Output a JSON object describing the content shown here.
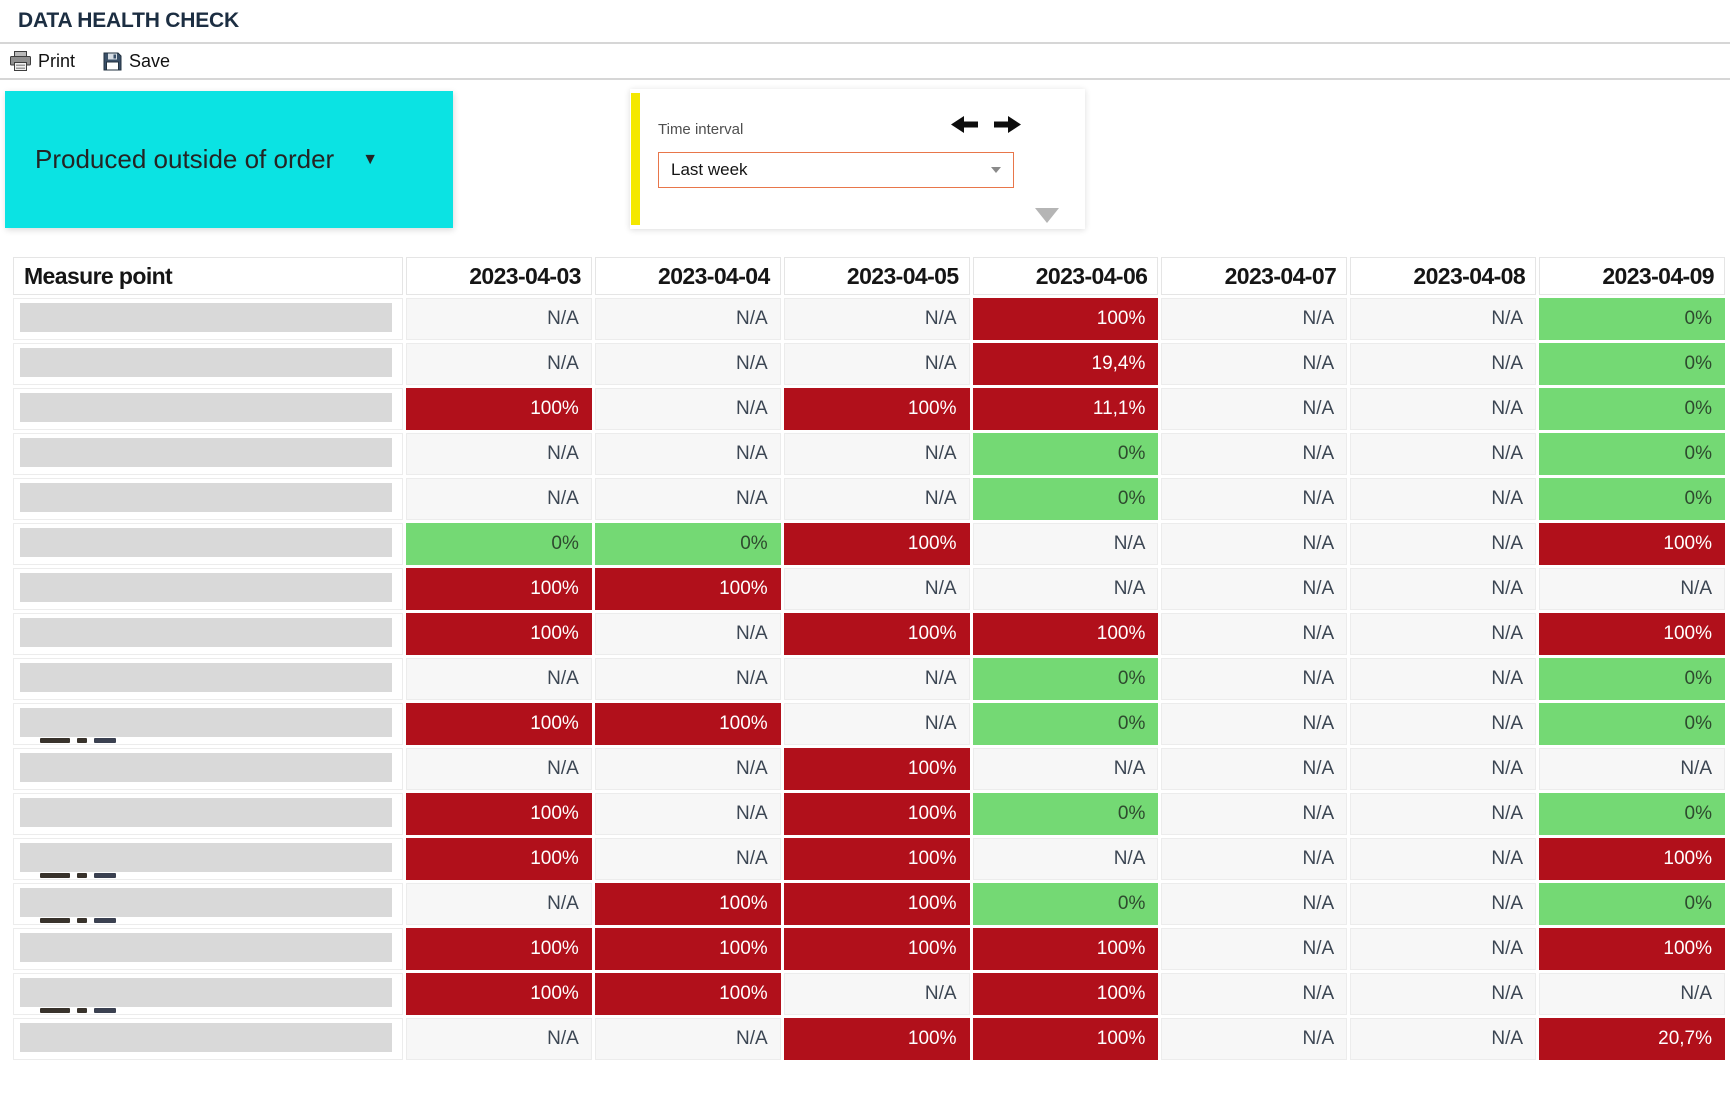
{
  "page": {
    "title": "DATA HEALTH CHECK"
  },
  "toolbar": {
    "print_label": "Print",
    "save_label": "Save",
    "print_icon": "printer-icon",
    "save_icon": "floppy-disk-icon"
  },
  "filters": {
    "measure_dropdown": {
      "label": "Produced outside of order",
      "caret": "▼"
    },
    "time_panel": {
      "label": "Time interval",
      "selected": "Last week",
      "prev_icon": "arrow-left-icon",
      "next_icon": "arrow-right-icon"
    }
  },
  "colors": {
    "red_cell": "#b1101b",
    "green_cell": "#74d974",
    "cyan_dropdown": "#0be3e3",
    "yellow_accent": "#f4e800",
    "select_border": "#e8764a",
    "redaction_gray": "#d9d9d9"
  },
  "table": {
    "measure_point_header": "Measure point",
    "date_headers": [
      "2023-04-03",
      "2023-04-04",
      "2023-04-05",
      "2023-04-06",
      "2023-04-07",
      "2023-04-08",
      "2023-04-09"
    ],
    "rows": [
      {
        "redacted": true,
        "fragment": false,
        "cells": [
          {
            "text": "N/A",
            "state": "na"
          },
          {
            "text": "N/A",
            "state": "na"
          },
          {
            "text": "N/A",
            "state": "na"
          },
          {
            "text": "100%",
            "state": "red"
          },
          {
            "text": "N/A",
            "state": "na"
          },
          {
            "text": "N/A",
            "state": "na"
          },
          {
            "text": "0%",
            "state": "green"
          }
        ]
      },
      {
        "redacted": true,
        "fragment": false,
        "cells": [
          {
            "text": "N/A",
            "state": "na"
          },
          {
            "text": "N/A",
            "state": "na"
          },
          {
            "text": "N/A",
            "state": "na"
          },
          {
            "text": "19,4%",
            "state": "red"
          },
          {
            "text": "N/A",
            "state": "na"
          },
          {
            "text": "N/A",
            "state": "na"
          },
          {
            "text": "0%",
            "state": "green"
          }
        ]
      },
      {
        "redacted": true,
        "fragment": false,
        "cells": [
          {
            "text": "100%",
            "state": "red"
          },
          {
            "text": "N/A",
            "state": "na"
          },
          {
            "text": "100%",
            "state": "red"
          },
          {
            "text": "11,1%",
            "state": "red"
          },
          {
            "text": "N/A",
            "state": "na"
          },
          {
            "text": "N/A",
            "state": "na"
          },
          {
            "text": "0%",
            "state": "green"
          }
        ]
      },
      {
        "redacted": true,
        "fragment": false,
        "cells": [
          {
            "text": "N/A",
            "state": "na"
          },
          {
            "text": "N/A",
            "state": "na"
          },
          {
            "text": "N/A",
            "state": "na"
          },
          {
            "text": "0%",
            "state": "green"
          },
          {
            "text": "N/A",
            "state": "na"
          },
          {
            "text": "N/A",
            "state": "na"
          },
          {
            "text": "0%",
            "state": "green"
          }
        ]
      },
      {
        "redacted": true,
        "fragment": false,
        "cells": [
          {
            "text": "N/A",
            "state": "na"
          },
          {
            "text": "N/A",
            "state": "na"
          },
          {
            "text": "N/A",
            "state": "na"
          },
          {
            "text": "0%",
            "state": "green"
          },
          {
            "text": "N/A",
            "state": "na"
          },
          {
            "text": "N/A",
            "state": "na"
          },
          {
            "text": "0%",
            "state": "green"
          }
        ]
      },
      {
        "redacted": true,
        "fragment": false,
        "cells": [
          {
            "text": "0%",
            "state": "green"
          },
          {
            "text": "0%",
            "state": "green"
          },
          {
            "text": "100%",
            "state": "red"
          },
          {
            "text": "N/A",
            "state": "na"
          },
          {
            "text": "N/A",
            "state": "na"
          },
          {
            "text": "N/A",
            "state": "na"
          },
          {
            "text": "100%",
            "state": "red"
          }
        ]
      },
      {
        "redacted": true,
        "fragment": false,
        "cells": [
          {
            "text": "100%",
            "state": "red"
          },
          {
            "text": "100%",
            "state": "red"
          },
          {
            "text": "N/A",
            "state": "na"
          },
          {
            "text": "N/A",
            "state": "na"
          },
          {
            "text": "N/A",
            "state": "na"
          },
          {
            "text": "N/A",
            "state": "na"
          },
          {
            "text": "N/A",
            "state": "na"
          }
        ]
      },
      {
        "redacted": true,
        "fragment": false,
        "cells": [
          {
            "text": "100%",
            "state": "red"
          },
          {
            "text": "N/A",
            "state": "na"
          },
          {
            "text": "100%",
            "state": "red"
          },
          {
            "text": "100%",
            "state": "red"
          },
          {
            "text": "N/A",
            "state": "na"
          },
          {
            "text": "N/A",
            "state": "na"
          },
          {
            "text": "100%",
            "state": "red"
          }
        ]
      },
      {
        "redacted": true,
        "fragment": false,
        "cells": [
          {
            "text": "N/A",
            "state": "na"
          },
          {
            "text": "N/A",
            "state": "na"
          },
          {
            "text": "N/A",
            "state": "na"
          },
          {
            "text": "0%",
            "state": "green"
          },
          {
            "text": "N/A",
            "state": "na"
          },
          {
            "text": "N/A",
            "state": "na"
          },
          {
            "text": "0%",
            "state": "green"
          }
        ]
      },
      {
        "redacted": true,
        "fragment": true,
        "cells": [
          {
            "text": "100%",
            "state": "red"
          },
          {
            "text": "100%",
            "state": "red"
          },
          {
            "text": "N/A",
            "state": "na"
          },
          {
            "text": "0%",
            "state": "green"
          },
          {
            "text": "N/A",
            "state": "na"
          },
          {
            "text": "N/A",
            "state": "na"
          },
          {
            "text": "0%",
            "state": "green"
          }
        ]
      },
      {
        "redacted": true,
        "fragment": false,
        "cells": [
          {
            "text": "N/A",
            "state": "na"
          },
          {
            "text": "N/A",
            "state": "na"
          },
          {
            "text": "100%",
            "state": "red"
          },
          {
            "text": "N/A",
            "state": "na"
          },
          {
            "text": "N/A",
            "state": "na"
          },
          {
            "text": "N/A",
            "state": "na"
          },
          {
            "text": "N/A",
            "state": "na"
          }
        ]
      },
      {
        "redacted": true,
        "fragment": false,
        "cells": [
          {
            "text": "100%",
            "state": "red"
          },
          {
            "text": "N/A",
            "state": "na"
          },
          {
            "text": "100%",
            "state": "red"
          },
          {
            "text": "0%",
            "state": "green"
          },
          {
            "text": "N/A",
            "state": "na"
          },
          {
            "text": "N/A",
            "state": "na"
          },
          {
            "text": "0%",
            "state": "green"
          }
        ]
      },
      {
        "redacted": true,
        "fragment": true,
        "cells": [
          {
            "text": "100%",
            "state": "red"
          },
          {
            "text": "N/A",
            "state": "na"
          },
          {
            "text": "100%",
            "state": "red"
          },
          {
            "text": "N/A",
            "state": "na"
          },
          {
            "text": "N/A",
            "state": "na"
          },
          {
            "text": "N/A",
            "state": "na"
          },
          {
            "text": "100%",
            "state": "red"
          }
        ]
      },
      {
        "redacted": true,
        "fragment": true,
        "cells": [
          {
            "text": "N/A",
            "state": "na"
          },
          {
            "text": "100%",
            "state": "red"
          },
          {
            "text": "100%",
            "state": "red"
          },
          {
            "text": "0%",
            "state": "green"
          },
          {
            "text": "N/A",
            "state": "na"
          },
          {
            "text": "N/A",
            "state": "na"
          },
          {
            "text": "0%",
            "state": "green"
          }
        ]
      },
      {
        "redacted": true,
        "fragment": false,
        "cells": [
          {
            "text": "100%",
            "state": "red"
          },
          {
            "text": "100%",
            "state": "red"
          },
          {
            "text": "100%",
            "state": "red"
          },
          {
            "text": "100%",
            "state": "red"
          },
          {
            "text": "N/A",
            "state": "na"
          },
          {
            "text": "N/A",
            "state": "na"
          },
          {
            "text": "100%",
            "state": "red"
          }
        ]
      },
      {
        "redacted": true,
        "fragment": true,
        "cells": [
          {
            "text": "100%",
            "state": "red"
          },
          {
            "text": "100%",
            "state": "red"
          },
          {
            "text": "N/A",
            "state": "na"
          },
          {
            "text": "100%",
            "state": "red"
          },
          {
            "text": "N/A",
            "state": "na"
          },
          {
            "text": "N/A",
            "state": "na"
          },
          {
            "text": "N/A",
            "state": "na"
          }
        ]
      },
      {
        "redacted": true,
        "fragment": false,
        "cells": [
          {
            "text": "N/A",
            "state": "na"
          },
          {
            "text": "N/A",
            "state": "na"
          },
          {
            "text": "100%",
            "state": "red"
          },
          {
            "text": "100%",
            "state": "red"
          },
          {
            "text": "N/A",
            "state": "na"
          },
          {
            "text": "N/A",
            "state": "na"
          },
          {
            "text": "20,7%",
            "state": "red"
          }
        ]
      }
    ]
  }
}
